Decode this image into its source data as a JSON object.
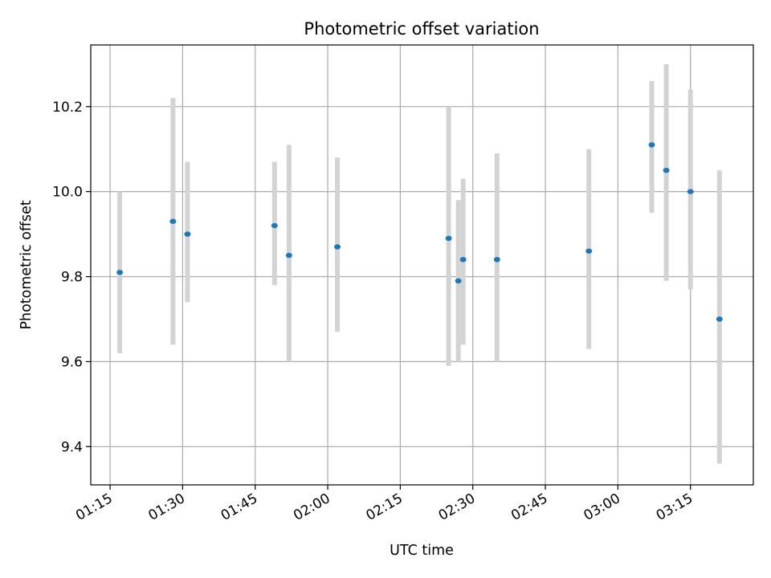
{
  "chart_data": {
    "type": "scatter",
    "title": "Photometric offset variation",
    "xlabel": "UTC time",
    "ylabel": "Photometric offset",
    "x_ticks": [
      "01:15",
      "01:30",
      "01:45",
      "02:00",
      "02:15",
      "02:30",
      "02:45",
      "03:00",
      "03:15"
    ],
    "y_ticks": [
      "9.4",
      "9.6",
      "9.8",
      "10.0",
      "10.2"
    ],
    "xlim": [
      "01:11",
      "03:28"
    ],
    "ylim": [
      9.31,
      10.345
    ],
    "grid": true,
    "colors": {
      "marker": "#1f77b4",
      "errorbar": "#d3d3d3",
      "grid": "#b0b0b0"
    },
    "points": [
      {
        "time": "01:17",
        "value": 9.81,
        "lower": 9.62,
        "upper": 10.0
      },
      {
        "time": "01:28",
        "value": 9.93,
        "lower": 9.64,
        "upper": 10.22
      },
      {
        "time": "01:31",
        "value": 9.9,
        "lower": 9.74,
        "upper": 10.07
      },
      {
        "time": "01:49",
        "value": 9.92,
        "lower": 9.78,
        "upper": 10.07
      },
      {
        "time": "01:52",
        "value": 9.85,
        "lower": 9.6,
        "upper": 10.11
      },
      {
        "time": "02:02",
        "value": 9.87,
        "lower": 9.67,
        "upper": 10.08
      },
      {
        "time": "02:25",
        "value": 9.89,
        "lower": 9.59,
        "upper": 10.2
      },
      {
        "time": "02:27",
        "value": 9.79,
        "lower": 9.6,
        "upper": 9.98
      },
      {
        "time": "02:28",
        "value": 9.84,
        "lower": 9.64,
        "upper": 10.03
      },
      {
        "time": "02:35",
        "value": 9.84,
        "lower": 9.6,
        "upper": 10.09
      },
      {
        "time": "02:54",
        "value": 9.86,
        "lower": 9.63,
        "upper": 10.1
      },
      {
        "time": "03:07",
        "value": 10.11,
        "lower": 9.95,
        "upper": 10.26
      },
      {
        "time": "03:10",
        "value": 10.05,
        "lower": 9.79,
        "upper": 10.3
      },
      {
        "time": "03:15",
        "value": 10.0,
        "lower": 9.77,
        "upper": 10.24
      },
      {
        "time": "03:21",
        "value": 9.7,
        "lower": 9.36,
        "upper": 10.05
      }
    ]
  }
}
